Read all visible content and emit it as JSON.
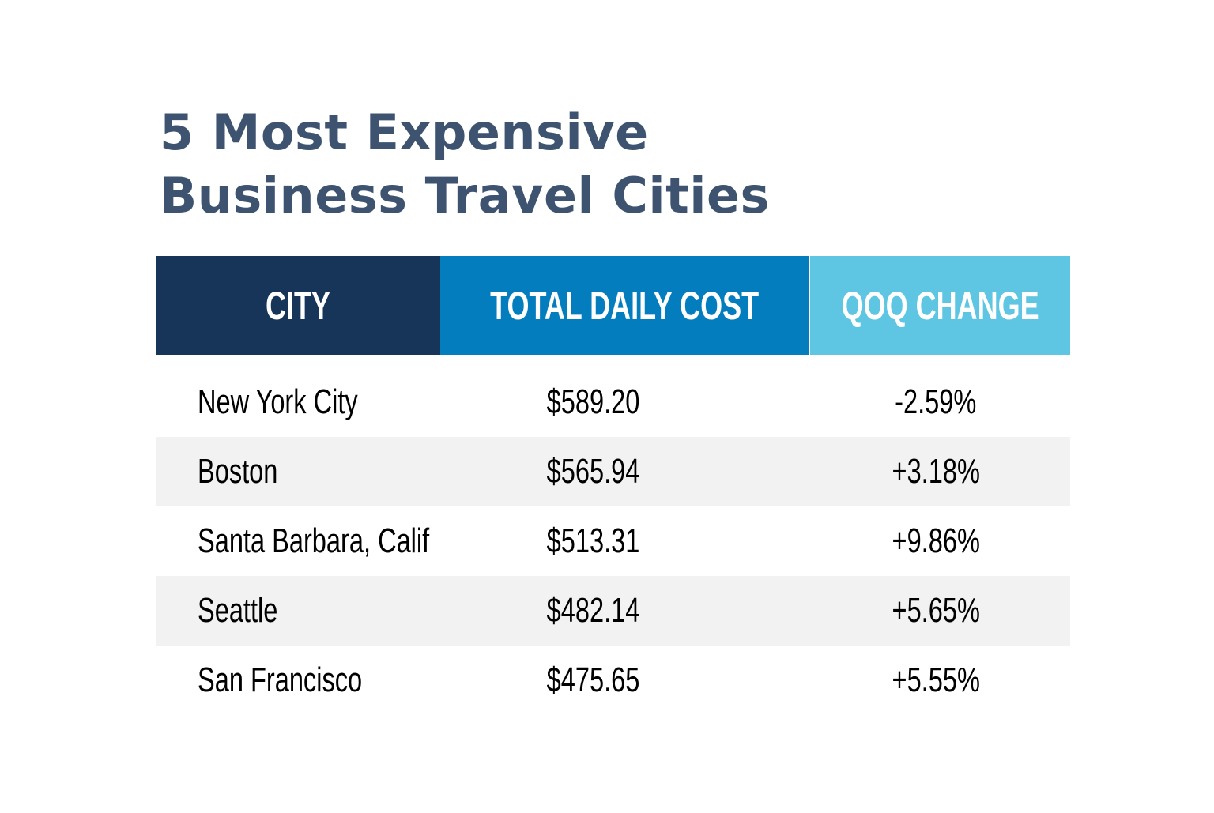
{
  "title": {
    "line1": "5 Most Expensive",
    "line2": "Business Travel Cities"
  },
  "colors": {
    "title": "#3d5370",
    "header_city": "#173559",
    "header_cost": "#037dbe",
    "header_qoq": "#5ec6e3",
    "row_alt": "#f2f2f2"
  },
  "table": {
    "headers": [
      "CITY",
      "TOTAL DAILY COST",
      "QOQ CHANGE"
    ],
    "rows": [
      {
        "city": "New York City",
        "cost": "$589.20",
        "qoq": "-2.59%"
      },
      {
        "city": "Boston",
        "cost": "$565.94",
        "qoq": "+3.18%"
      },
      {
        "city": "Santa Barbara, Calif",
        "cost": "$513.31",
        "qoq": "+9.86%"
      },
      {
        "city": "Seattle",
        "cost": "$482.14",
        "qoq": "+5.65%"
      },
      {
        "city": "San Francisco",
        "cost": "$475.65",
        "qoq": "+5.55%"
      }
    ]
  },
  "chart_data": {
    "type": "table",
    "title": "5 Most Expensive Business Travel Cities",
    "columns": [
      "CITY",
      "TOTAL DAILY COST",
      "QOQ CHANGE"
    ],
    "categories": [
      "New York City",
      "Boston",
      "Santa Barbara, Calif",
      "Seattle",
      "San Francisco"
    ],
    "series": [
      {
        "name": "TOTAL DAILY COST",
        "values": [
          589.2,
          565.94,
          513.31,
          482.14,
          475.65
        ],
        "unit": "$"
      },
      {
        "name": "QOQ CHANGE",
        "values": [
          -2.59,
          3.18,
          9.86,
          5.65,
          5.55
        ],
        "unit": "%"
      }
    ]
  }
}
